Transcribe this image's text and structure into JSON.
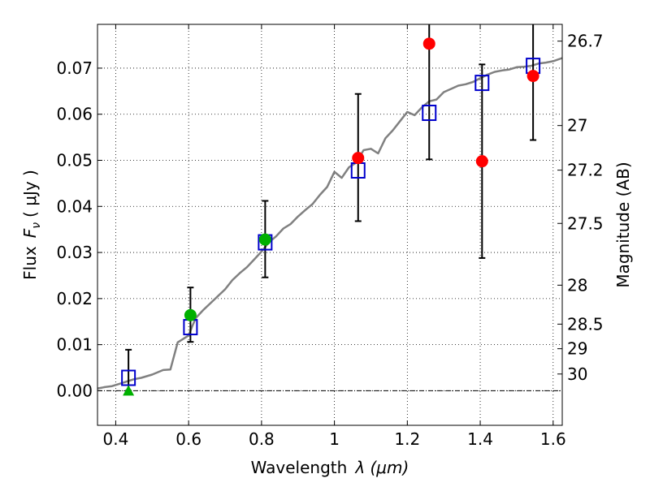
{
  "chart_data": {
    "type": "scatter",
    "xlabel_text": "Wavelength",
    "xlabel_math": "λ (μm)",
    "ylabel_text": "Flux",
    "ylabel_math": "F",
    "ylabel_sub": "ν",
    "ylabel_unit": "( μJy )",
    "y2label": "Magnitude (AB)",
    "xlim": [
      0.35,
      1.625
    ],
    "ylim": [
      -0.0075,
      0.0795
    ],
    "grid": true,
    "x_ticks": [
      {
        "value": 0.4,
        "label": "0.4"
      },
      {
        "value": 0.6,
        "label": "0.6"
      },
      {
        "value": 0.8,
        "label": "0.8"
      },
      {
        "value": 1.0,
        "label": "1"
      },
      {
        "value": 1.2,
        "label": "1.2"
      },
      {
        "value": 1.4,
        "label": "1.4"
      },
      {
        "value": 1.6,
        "label": "1.6"
      }
    ],
    "y_ticks": [
      {
        "value": 0.0,
        "label": "0.00"
      },
      {
        "value": 0.01,
        "label": "0.01"
      },
      {
        "value": 0.02,
        "label": "0.02"
      },
      {
        "value": 0.03,
        "label": "0.03"
      },
      {
        "value": 0.04,
        "label": "0.04"
      },
      {
        "value": 0.05,
        "label": "0.05"
      },
      {
        "value": 0.06,
        "label": "0.06"
      },
      {
        "value": 0.07,
        "label": "0.07"
      }
    ],
    "mag_ticks": [
      {
        "value": 26.7,
        "label": "26.7"
      },
      {
        "value": 27.0,
        "label": "27"
      },
      {
        "value": 27.2,
        "label": "27.2"
      },
      {
        "value": 27.5,
        "label": "27.5"
      },
      {
        "value": 28.0,
        "label": "28"
      },
      {
        "value": 28.5,
        "label": "28.5"
      },
      {
        "value": 29.0,
        "label": "29"
      },
      {
        "value": 30.0,
        "label": "30"
      }
    ],
    "zero_line": 0.0,
    "template_spectrum": {
      "color": "#808080",
      "x": [
        0.35,
        0.37,
        0.39,
        0.41,
        0.43,
        0.45,
        0.47,
        0.5,
        0.53,
        0.55,
        0.57,
        0.6,
        0.61,
        0.62,
        0.64,
        0.66,
        0.68,
        0.7,
        0.72,
        0.74,
        0.76,
        0.78,
        0.8,
        0.82,
        0.84,
        0.86,
        0.88,
        0.9,
        0.92,
        0.94,
        0.96,
        0.98,
        1.0,
        1.02,
        1.04,
        1.06,
        1.08,
        1.1,
        1.12,
        1.14,
        1.16,
        1.18,
        1.2,
        1.22,
        1.24,
        1.26,
        1.28,
        1.3,
        1.32,
        1.34,
        1.36,
        1.38,
        1.4,
        1.42,
        1.44,
        1.46,
        1.48,
        1.5,
        1.52,
        1.54,
        1.56,
        1.58,
        1.6,
        1.625
      ],
      "y": [
        0.0005,
        0.0008,
        0.001,
        0.0015,
        0.002,
        0.0025,
        0.0028,
        0.0035,
        0.0045,
        0.0046,
        0.0105,
        0.012,
        0.014,
        0.0158,
        0.0175,
        0.019,
        0.0205,
        0.022,
        0.024,
        0.0255,
        0.0268,
        0.0285,
        0.0302,
        0.0322,
        0.0335,
        0.0352,
        0.0362,
        0.0378,
        0.0392,
        0.0405,
        0.0425,
        0.0442,
        0.0475,
        0.0462,
        0.0485,
        0.0495,
        0.0522,
        0.0525,
        0.0515,
        0.0548,
        0.0565,
        0.0585,
        0.0605,
        0.0598,
        0.0615,
        0.0628,
        0.0632,
        0.0648,
        0.0655,
        0.0662,
        0.0665,
        0.067,
        0.0678,
        0.0686,
        0.0692,
        0.0695,
        0.0697,
        0.0702,
        0.0703,
        0.0705,
        0.071,
        0.0712,
        0.0715,
        0.0722
      ]
    },
    "model_flux": {
      "marker": "open-square",
      "color": "#0000cc",
      "x": [
        0.435,
        0.605,
        0.81,
        1.065,
        1.26,
        1.405,
        1.545
      ],
      "y": [
        0.0028,
        0.0138,
        0.0322,
        0.0478,
        0.0603,
        0.0668,
        0.0705
      ]
    },
    "detections_optical": {
      "marker": "filled-circle",
      "color": "#00b000",
      "x": [
        0.605,
        0.81
      ],
      "y": [
        0.0164,
        0.0328
      ]
    },
    "upper_limit": {
      "marker": "filled-triangle",
      "color": "#00b000",
      "x": [
        0.435
      ],
      "y": [
        0.0
      ]
    },
    "detections_nir": {
      "marker": "filled-circle",
      "color": "#ff0000",
      "x": [
        1.065,
        1.26,
        1.405,
        1.545
      ],
      "y": [
        0.0505,
        0.0753,
        0.0498,
        0.0683
      ]
    },
    "error_bars": [
      {
        "x": 0.435,
        "low": 0.0,
        "high": 0.0089
      },
      {
        "x": 0.605,
        "low": 0.0106,
        "high": 0.0224
      },
      {
        "x": 0.81,
        "low": 0.0246,
        "high": 0.0412
      },
      {
        "x": 1.065,
        "low": 0.0368,
        "high": 0.0644
      },
      {
        "x": 1.26,
        "low": 0.0502,
        "high": 0.0795
      },
      {
        "x": 1.405,
        "low": 0.0288,
        "high": 0.0708
      },
      {
        "x": 1.545,
        "low": 0.0544,
        "high": 0.0795
      }
    ]
  }
}
